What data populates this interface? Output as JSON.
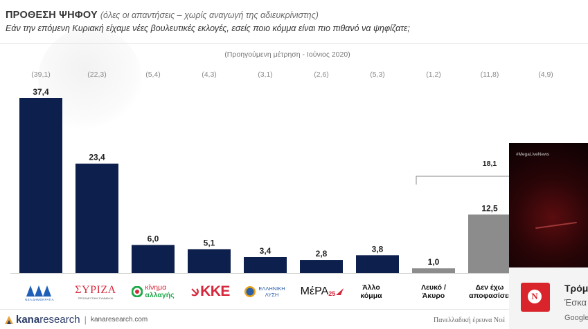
{
  "header": {
    "title": "ΠΡΟΘΕΣΗ ΨΗΦΟΥ",
    "title_note": "(όλες οι απαντήσεις – χωρίς αναγωγή της αδιευκρίνιστης)",
    "question": "Εάν την επόμενη Κυριακή είχαμε νέες βουλευτικές εκλογές, εσείς ποιο κόμμα είναι πιο πιθανό να ψηφίζατε;"
  },
  "previous_note": "(Προηγούμενη μέτρηση - Ιούνιος 2020)",
  "chart_data": {
    "type": "bar",
    "categories": [
      "ΝΔ",
      "ΣΥΡΙΖΑ",
      "Κίνημα Αλλαγής",
      "ΚΚΕ",
      "Ελληνική Λύση",
      "ΜέΡΑ25",
      "Άλλο κόμμα",
      "Λευκό / Άκυρο",
      "Δεν έχω αποφασίσει",
      ""
    ],
    "values": [
      37.4,
      23.4,
      6.0,
      5.1,
      3.4,
      2.8,
      3.8,
      1.0,
      12.5,
      null
    ],
    "value_labels": [
      "37,4",
      "23,4",
      "6,0",
      "5,1",
      "3,4",
      "2,8",
      "3,8",
      "1,0",
      "12,5",
      ""
    ],
    "previous_labels": [
      "(39,1)",
      "(22,3)",
      "(5,4)",
      "(4,3)",
      "(3,1)",
      "(2,6)",
      "(5,3)",
      "(1,2)",
      "(11,8)",
      "(4,9)"
    ],
    "bracket_label": "18,1",
    "colors": {
      "main": "#0c1f4d",
      "other": "#8c8c8c"
    },
    "ylim": [
      0,
      40
    ]
  },
  "logos": {
    "nd_sub": "ΝΕΑ ΔΗΜΟΚΡΑΤΙΑ",
    "syriza": "ΣΥΡΙΖΑ",
    "syriza_sub": "ΠΡΟΟΔΕΥΤΙΚΗ ΣΥΜΜΑΧΙΑ",
    "kinal_1": "κίνημα",
    "kinal_2": "αλλαγής",
    "kke": "ΚΚΕ",
    "el_1": "ΕΛΛΗΝΙΚΗ",
    "el_2": "ΛΥΣΗ",
    "mera": "ΜέΡΑ",
    "mera_num": "25",
    "other_1": "Άλλο",
    "other_2": "κόμμα",
    "blank_1": "Λευκό /",
    "blank_2": "Άκυρο",
    "undecided_1": "Δεν έχω",
    "undecided_2": "αποφασίσει"
  },
  "footer": {
    "brand_a": "kana",
    "brand_b": "research",
    "url": "kanaresearch.com",
    "note": "Πανελλαδική έρευνα Νοέ"
  },
  "overlay": {
    "video_tag": "#MegaLiveNews",
    "card_title": "Τρόμ",
    "card_sub": "Έσκα",
    "card_src": "Google"
  }
}
